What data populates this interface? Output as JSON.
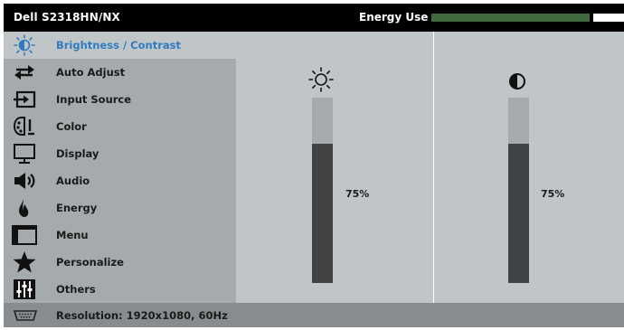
{
  "header": {
    "title": "Dell S2318HN/NX",
    "energy_label": "Energy Use",
    "energy_level_percent": 82,
    "energy_color": "#3f6b3f"
  },
  "menu": {
    "selected_index": 0,
    "selected_color": "#2f7bc0",
    "items": [
      {
        "label": "Brightness / Contrast",
        "icon": "brightness-icon"
      },
      {
        "label": "Auto Adjust",
        "icon": "auto-adjust-icon"
      },
      {
        "label": "Input Source",
        "icon": "input-source-icon"
      },
      {
        "label": "Color",
        "icon": "color-icon"
      },
      {
        "label": "Display",
        "icon": "display-icon"
      },
      {
        "label": "Audio",
        "icon": "audio-icon"
      },
      {
        "label": "Energy",
        "icon": "energy-icon"
      },
      {
        "label": "Menu",
        "icon": "menu-icon"
      },
      {
        "label": "Personalize",
        "icon": "personalize-icon"
      },
      {
        "label": "Others",
        "icon": "others-icon"
      }
    ]
  },
  "sliders": {
    "brightness": {
      "icon": "sun-icon",
      "value": 75,
      "value_text": "75%"
    },
    "contrast": {
      "icon": "contrast-icon",
      "value": 75,
      "value_text": "75%"
    }
  },
  "footer": {
    "icon": "vga-connector-icon",
    "resolution_text": "Resolution: 1920x1080, 60Hz"
  }
}
